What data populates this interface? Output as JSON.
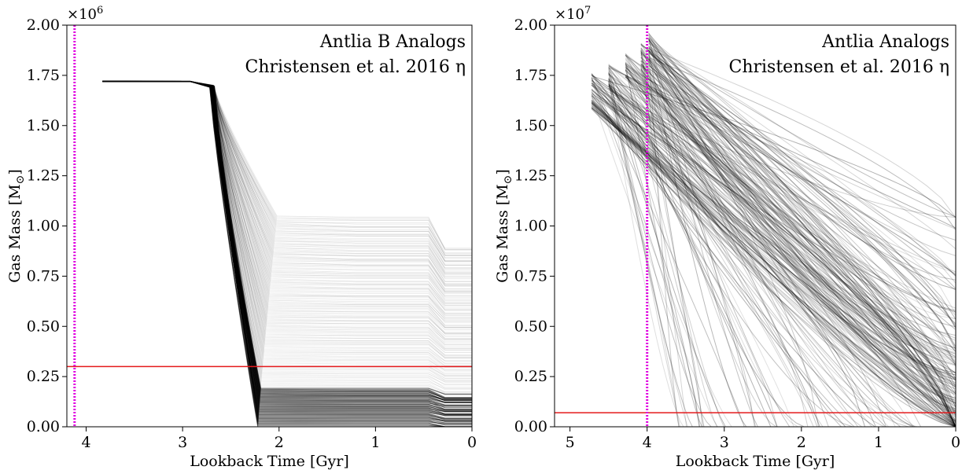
{
  "chart_data": [
    {
      "type": "line",
      "ylabel_prefix": "Gas Mass [M",
      "ylabel_suffix": "]",
      "ylabel_sub": "⊙",
      "xlabel": "Lookback Time [Gyr]",
      "xlim": [
        4.2,
        0
      ],
      "ylim": [
        0,
        2000000
      ],
      "y_multiplier_prefix": "×10",
      "y_multiplier_exp": "6",
      "x_ticks": [
        4,
        3,
        2,
        1,
        0
      ],
      "y_ticks": [
        0,
        250000,
        500000,
        750000,
        1000000,
        1250000,
        1500000,
        1750000,
        2000000
      ],
      "x_tick_labels": [
        "4",
        "3",
        "2",
        "1",
        "0"
      ],
      "y_tick_labels": [
        "0.00",
        "0.25",
        "0.50",
        "0.75",
        "1.00",
        "1.25",
        "1.50",
        "1.75",
        "2.00"
      ],
      "annotation_line1": "Antlia B Analogs",
      "annotation_line2": "Christensen et al. 2016 η",
      "vline_x": 4.12,
      "vline_color": "#e000e0",
      "hline_y": 300000,
      "hline_color": "#e41a1c",
      "ensemble": {
        "start_time": 3.83,
        "start_mass": 1720000,
        "plateau_end_time": 2.72,
        "plateau_end_mass": 1700000,
        "drop_end_time_range": [
          2.22,
          2.02
        ],
        "floor_mass_range": [
          0,
          1050000
        ],
        "line_color": "#000000"
      }
    },
    {
      "type": "line",
      "ylabel_prefix": "Gas Mass [M",
      "ylabel_suffix": "]",
      "ylabel_sub": "⊙",
      "xlabel": "Lookback Time [Gyr]",
      "xlim": [
        5.2,
        0
      ],
      "ylim": [
        0,
        20000000
      ],
      "y_multiplier_prefix": "×10",
      "y_multiplier_exp": "7",
      "x_ticks": [
        5,
        4,
        3,
        2,
        1,
        0
      ],
      "y_ticks": [
        0,
        2500000,
        5000000,
        7500000,
        10000000,
        12500000,
        15000000,
        17500000,
        20000000
      ],
      "x_tick_labels": [
        "5",
        "4",
        "3",
        "2",
        "1",
        "0"
      ],
      "y_tick_labels": [
        "0.00",
        "0.25",
        "0.50",
        "0.75",
        "1.00",
        "1.25",
        "1.50",
        "1.75",
        "2.00"
      ],
      "annotation_line1": "Antlia Analogs",
      "annotation_line2": "Christensen et al. 2016 η",
      "vline_x": 4.0,
      "vline_color": "#e000e0",
      "hline_y": 700000,
      "hline_color": "#e41a1c",
      "ensemble": {
        "peaks": [
          {
            "time": 4.72,
            "mass": 17600000
          },
          {
            "time": 4.5,
            "mass": 18100000
          },
          {
            "time": 4.28,
            "mass": 18600000
          },
          {
            "time": 4.08,
            "mass": 19100000
          },
          {
            "time": 3.98,
            "mass": 19700000
          }
        ],
        "low_start": {
          "time": 4.72,
          "mass": 16300000
        },
        "end_mass_range": [
          0,
          11000000
        ],
        "line_color": "#000000"
      }
    }
  ]
}
